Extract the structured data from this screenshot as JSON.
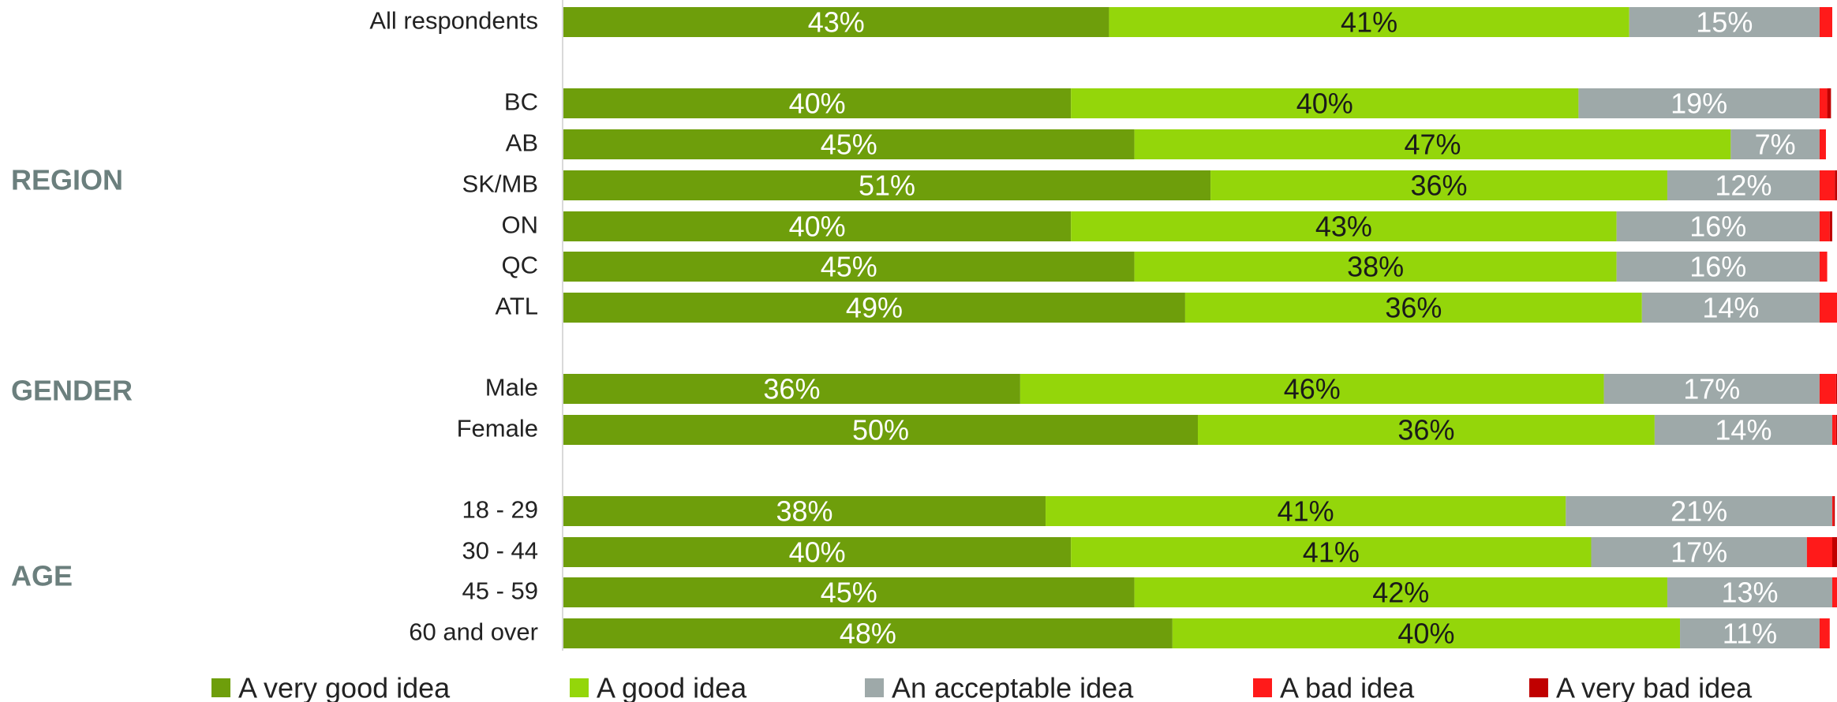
{
  "chart_data": {
    "type": "bar",
    "orientation": "horizontal",
    "stacked": true,
    "xlim": [
      0,
      100
    ],
    "grid": false,
    "legend_position": "bottom",
    "groups": [
      {
        "label": "",
        "rows": [
          "All respondents"
        ]
      },
      {
        "label": "REGION",
        "rows": [
          "BC",
          "AB",
          "SK/MB",
          "ON",
          "QC",
          "ATL"
        ]
      },
      {
        "label": "GENDER",
        "rows": [
          "Male",
          "Female"
        ]
      },
      {
        "label": "AGE",
        "rows": [
          "18 - 29",
          "30 - 44",
          "45 - 59",
          "60 and over"
        ]
      }
    ],
    "categories": [
      "All respondents",
      "BC",
      "AB",
      "SK/MB",
      "ON",
      "QC",
      "ATL",
      "Male",
      "Female",
      "18 - 29",
      "30 - 44",
      "45 - 59",
      "60 and over"
    ],
    "series": [
      {
        "name": "A very good idea",
        "color": "#6e9e0b",
        "text_color": "#ffffff",
        "values": [
          43,
          40,
          45,
          51,
          40,
          45,
          49,
          36,
          50,
          38,
          40,
          45,
          48
        ],
        "labels": [
          "43%",
          "40%",
          "45%",
          "51%",
          "40%",
          "45%",
          "49%",
          "36%",
          "50%",
          "38%",
          "40%",
          "45%",
          "48%"
        ]
      },
      {
        "name": "A good idea",
        "color": "#94d60a",
        "text_color": "#1a1a1a",
        "values": [
          41,
          40,
          47,
          36,
          43,
          38,
          36,
          46,
          36,
          41,
          41,
          42,
          40
        ],
        "labels": [
          "41%",
          "40%",
          "47%",
          "36%",
          "43%",
          "38%",
          "36%",
          "46%",
          "36%",
          "41%",
          "41%",
          "42%",
          "40%"
        ]
      },
      {
        "name": "An acceptable idea",
        "color": "#9ea9a9",
        "text_color": "#ffffff",
        "values": [
          15,
          19,
          7,
          12,
          16,
          16,
          14,
          17,
          14,
          21,
          17,
          13,
          11
        ],
        "labels": [
          "15%",
          "19%",
          "7%",
          "12%",
          "16%",
          "16%",
          "14%",
          "17%",
          "14%",
          "21%",
          "17%",
          "13%",
          "11%"
        ]
      },
      {
        "name": "A bad idea",
        "color": "#ff1a1a",
        "text_color": "#ffffff",
        "values": [
          1,
          0.6,
          0.5,
          1.2,
          0.8,
          0.6,
          1.5,
          1.3,
          0.3,
          0.1,
          2.0,
          0.4,
          0.8
        ],
        "labels": []
      },
      {
        "name": "A very bad idea",
        "color": "#c00000",
        "text_color": "#ffffff",
        "values": [
          0,
          0.3,
          0,
          0.3,
          0.2,
          0,
          0,
          0.1,
          0.2,
          0.1,
          0.5,
          0,
          0
        ],
        "labels": []
      }
    ]
  }
}
